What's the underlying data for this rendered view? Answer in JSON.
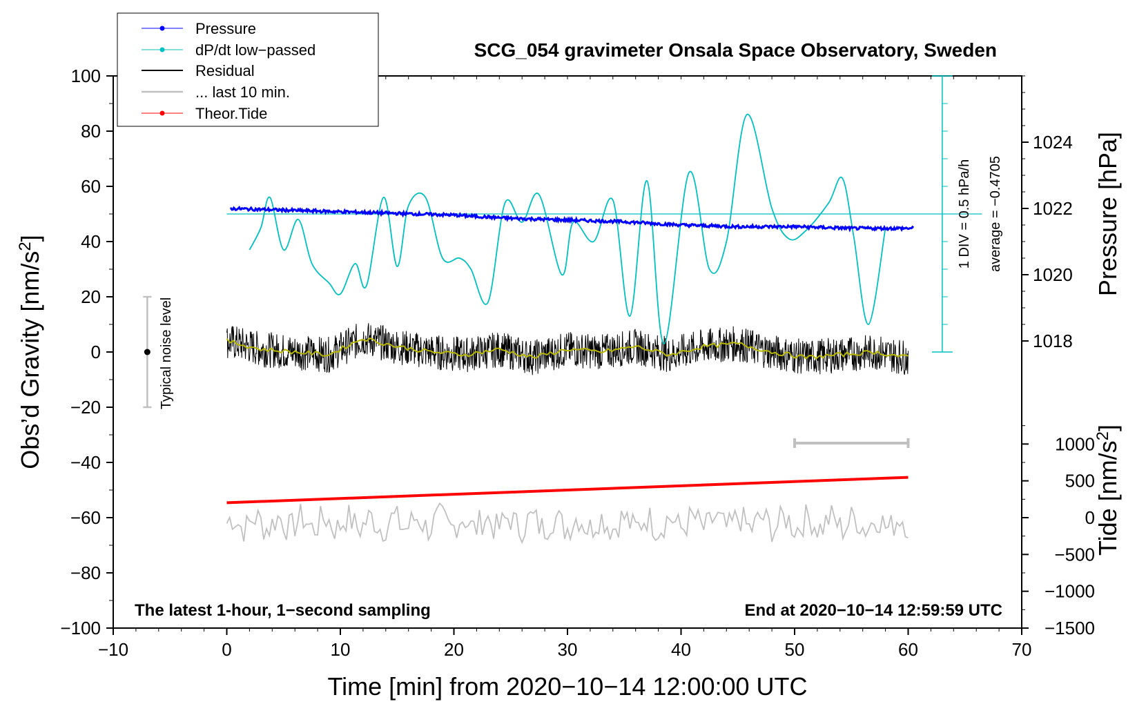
{
  "chart_data": {
    "type": "line",
    "title": "SCG_054 gravimeter Onsala Space Observatory, Sweden",
    "xlabel": "Time [min] from 2020−10−14 12:00:00 UTC",
    "ylabel_left_main": "Obs’d Gravity [nm/s",
    "ylabel_left_sup": "2",
    "ylabel_left_end": "]",
    "ylabel_right_top": "Pressure [hPa]",
    "ylabel_right_bottom_main": "Tide [nm/s",
    "ylabel_right_bottom_sup": "2",
    "ylabel_right_bottom_end": "]",
    "xlim": [
      -10,
      70
    ],
    "ylim": [
      -100,
      100
    ],
    "x_ticks": [
      "−10",
      "0",
      "10",
      "20",
      "30",
      "40",
      "50",
      "60",
      "70"
    ],
    "y_ticks": [
      "−100",
      "−80",
      "−60",
      "−40",
      "−20",
      "0",
      "20",
      "40",
      "60",
      "80",
      "100"
    ],
    "pressure_ticks": [
      "1018",
      "1020",
      "1022",
      "1024"
    ],
    "tide_ticks": [
      "−1500",
      "−1000",
      "−500",
      "0",
      "500",
      "1000"
    ],
    "pressure_range": [
      1016,
      1026
    ],
    "tide_range": [
      -1500,
      1500
    ],
    "legend": [
      "Pressure",
      "dP/dt low−passed",
      "Residual",
      "... last 10 min.",
      "Theor.Tide"
    ],
    "legend_position": "top-left",
    "annotations": {
      "bottom_left": "The latest 1-hour, 1−second sampling",
      "bottom_right": "End at 2020−10−14 12:59:59 UTC",
      "scale_div": "1 DIV = 0.5 hPa/h",
      "scale_avg": "average = −0.4705",
      "noise": "Typical noise level"
    },
    "noise_bar": {
      "x": -7,
      "y_center": 0,
      "y_range": [
        -20,
        20
      ]
    },
    "ten_min_bar": {
      "x_range": [
        50,
        60
      ],
      "y": -33
    },
    "series": [
      {
        "name": "Pressure",
        "unit": "hPa",
        "color": "#0000ff",
        "x": [
          0,
          5,
          10,
          15,
          20,
          25,
          30,
          35,
          40,
          45,
          50,
          55,
          60
        ],
        "values": [
          1022.0,
          1021.95,
          1021.9,
          1021.85,
          1021.8,
          1021.7,
          1021.65,
          1021.6,
          1021.5,
          1021.45,
          1021.45,
          1021.4,
          1021.4
        ]
      },
      {
        "name": "dP/dt low−passed",
        "unit": "nm/s2 plot scale",
        "color": "#00c0c0",
        "x": [
          2,
          3,
          3.8,
          5,
          6.3,
          7.5,
          9,
          10,
          11.3,
          12.3,
          13.8,
          15,
          16,
          17.5,
          19,
          20.5,
          21.5,
          23,
          24.5,
          26,
          27.5,
          29.5,
          30.5,
          32.3,
          34,
          35.5,
          37,
          38.5,
          40.7,
          42.5,
          44,
          45.8,
          48,
          49.5,
          51,
          53,
          54.2,
          55.2,
          56.5,
          58
        ],
        "values": [
          37,
          45,
          56,
          37,
          48,
          32,
          25,
          21,
          32,
          24,
          56,
          31,
          53,
          56,
          34,
          34,
          30,
          18,
          54,
          47,
          57,
          28,
          47,
          40,
          55,
          13,
          62,
          3,
          65,
          30,
          40,
          86,
          52,
          41,
          44,
          54,
          63,
          42,
          10,
          45
        ]
      },
      {
        "name": "Residual",
        "unit": "nm/s2",
        "color": "#000000",
        "x": [
          0,
          60
        ],
        "values": [
          2,
          -2
        ]
      },
      {
        "name": "Residual smoothed",
        "unit": "nm/s2",
        "color": "#b8b800",
        "x": [
          0,
          3,
          6,
          9,
          12,
          15,
          18,
          21,
          24,
          27,
          30,
          33,
          36,
          39,
          42,
          45,
          48,
          51,
          54,
          57,
          60
        ],
        "values": [
          4,
          1,
          0,
          -1,
          5,
          2,
          0,
          -1,
          1,
          -2,
          1,
          0,
          2,
          -1,
          2,
          3,
          0,
          -2,
          -1,
          0,
          -2
        ]
      },
      {
        "name": "... last 10 min.",
        "unit": "nm/s2",
        "color": "#c0c0c0",
        "x": [
          0,
          60
        ],
        "values": [
          -62,
          -62
        ]
      },
      {
        "name": "Theor.Tide",
        "unit": "nm/s2",
        "color": "#ff0000",
        "x": [
          0,
          60
        ],
        "values": [
          -54.6,
          -45.4
        ]
      }
    ]
  }
}
